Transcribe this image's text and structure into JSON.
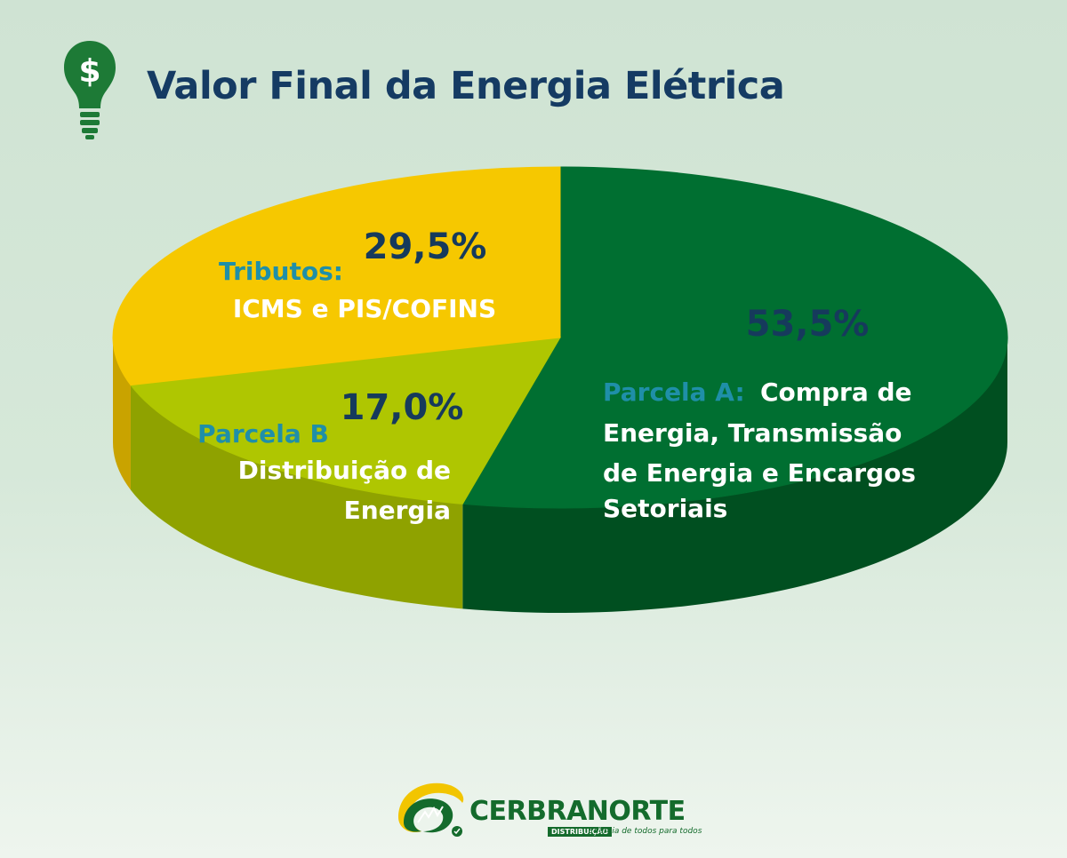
{
  "header": {
    "title": "Valor Final da Energia Elétrica",
    "icon": "dollar-lightbulb-icon"
  },
  "chart_data": {
    "type": "pie",
    "title": "Valor Final da Energia Elétrica",
    "slices": [
      {
        "value": 53.5,
        "percent_label": "53,5%",
        "label_head": "Parcela A:",
        "label_lines": [
          "Compra de",
          "Energia, Transmissão",
          "de Energia e Encargos",
          "Setoriais"
        ],
        "color": "#006f31",
        "side_color": "#004f20"
      },
      {
        "value": 17.0,
        "percent_label": "17,0%",
        "label_head": "Parcela B",
        "label_lines": [
          "Distribuição de",
          "Energia"
        ],
        "color": "#afc601",
        "side_color": "#8fa200"
      },
      {
        "value": 29.5,
        "percent_label": "29,5%",
        "label_head": "Tributos:",
        "label_lines": [
          "ICMS e PIS/COFINS"
        ],
        "color": "#f6c800",
        "side_color": "#c9a300"
      }
    ],
    "colors": {
      "percent_text": "#163a5c",
      "head_text": "#1f8fa8",
      "body_text": "#ffffff"
    }
  },
  "footer": {
    "brand": "CERBRANORTE",
    "sub": "DISTRIBUIÇÃO",
    "tagline": "Energia de todos para todos",
    "logo_icon": "cerbranorte-logo-icon",
    "brand_colors": {
      "green": "#146b2c",
      "yellow": "#f2c500"
    }
  }
}
